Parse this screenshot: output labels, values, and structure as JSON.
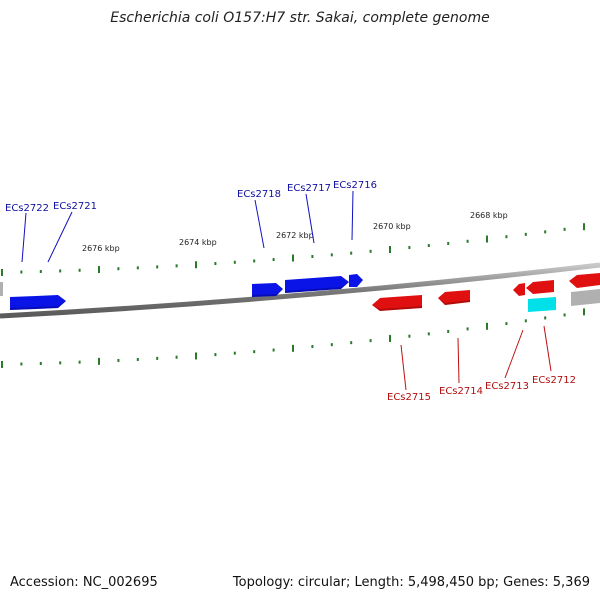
{
  "title": "Escherichia coli O157:H7 str. Sakai, complete genome",
  "footer": {
    "accession": "Accession: NC_002695",
    "summary": "Topology: circular; Length: 5,498,450 bp; Genes: 5,369"
  },
  "colors": {
    "forward_gene": "#0a14e6",
    "reverse_gene": "#e01010",
    "cyan_gene": "#00e0e8",
    "gray_gene": "#b0b0b0",
    "backbone": "#808080",
    "ticks": "#2a7a2a",
    "forward_label": "#1010a0",
    "reverse_label": "#b01010"
  },
  "scale_labels": [
    {
      "text": "2676 kbp"
    },
    {
      "text": "2674 kbp"
    },
    {
      "text": "2672 kbp"
    },
    {
      "text": "2670 kbp"
    },
    {
      "text": "2668 kbp"
    }
  ],
  "forward_labels": [
    {
      "text": "ECs2722"
    },
    {
      "text": "ECs2721"
    },
    {
      "text": "ECs2718"
    },
    {
      "text": "ECs2717"
    },
    {
      "text": "ECs2716"
    }
  ],
  "reverse_labels": [
    {
      "text": "ECs2715"
    },
    {
      "text": "ECs2714"
    },
    {
      "text": "ECs2713"
    },
    {
      "text": "ECs2712"
    }
  ]
}
